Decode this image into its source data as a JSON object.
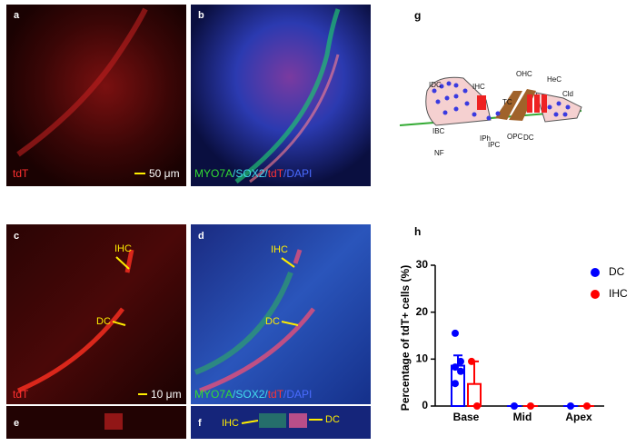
{
  "figure": {
    "panels": {
      "a": {
        "letter": "a",
        "stain": "tdT",
        "scale": "50 μm"
      },
      "b": {
        "letter": "b",
        "caption": [
          {
            "text": "MYO7A",
            "color": "#33dd33"
          },
          {
            "text": "/SOX2/",
            "color": "#44ddee"
          },
          {
            "text": "tdT",
            "color": "#ff3333"
          },
          {
            "text": "/DAPI",
            "color": "#4a6bff"
          }
        ]
      },
      "c": {
        "letter": "c",
        "stain": "tdT",
        "scale": "10 μm",
        "ihc": "IHC",
        "dc": "DC"
      },
      "d": {
        "letter": "d",
        "caption": [
          {
            "text": "MYO7A",
            "color": "#33dd33"
          },
          {
            "text": "/SOX2/",
            "color": "#44ddee"
          },
          {
            "text": "tdT",
            "color": "#ff3333"
          },
          {
            "text": "/DAPI",
            "color": "#4a6bff"
          }
        ],
        "ihc": "IHC",
        "dc": "DC"
      },
      "e": {
        "letter": "e"
      },
      "f": {
        "letter": "f",
        "ihc": "IHC",
        "dc": "DC"
      },
      "g": {
        "letter": "g",
        "labels": [
          "IDC",
          "IHC",
          "OHC",
          "HeC",
          "Cld",
          "TC",
          "IBC",
          "IPh",
          "IPC",
          "OPC",
          "DC",
          "NF"
        ]
      },
      "h": {
        "letter": "h"
      }
    }
  },
  "chart_data": {
    "type": "bar",
    "ylabel": "Percentage of tdT+ cells (%)",
    "categories": [
      "Base",
      "Mid",
      "Apex"
    ],
    "ylim": [
      0,
      30
    ],
    "yticks": [
      0,
      10,
      20,
      30
    ],
    "series": [
      {
        "name": "DC",
        "color": "#0000ff",
        "values": [
          8.6,
          0,
          0
        ],
        "errors": [
          2.2,
          0,
          0
        ],
        "points": [
          [
            15.5,
            9.5,
            8.3,
            7.4,
            4.8
          ],
          [
            0
          ],
          [
            0
          ]
        ]
      },
      {
        "name": "IHC",
        "color": "#ff0000",
        "values": [
          4.7,
          0,
          0
        ],
        "errors": [
          4.8,
          0,
          0
        ],
        "points": [
          [
            9.5,
            0
          ],
          [
            0
          ],
          [
            0
          ]
        ]
      }
    ]
  }
}
